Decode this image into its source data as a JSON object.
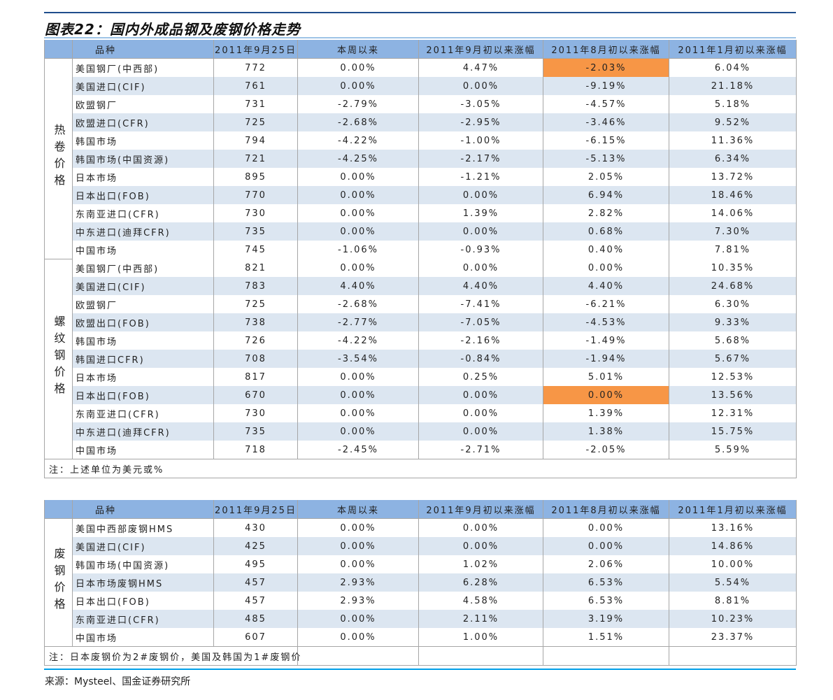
{
  "title": "图表22：国内外成品钢及废钢价格走势",
  "headers": [
    "品种",
    "2011年9月25日",
    "本周以来",
    "2011年9月初以来涨幅",
    "2011年8月初以来涨幅",
    "2011年1月初以来涨幅"
  ],
  "highlight_color": "#f79646",
  "table1": {
    "groups": [
      {
        "category": "热卷价格",
        "rows": [
          {
            "name": "美国钢厂(中西部)",
            "values": [
              "772",
              "0.00%",
              "4.47%",
              "-2.03%",
              "6.04%"
            ],
            "highlight": 3
          },
          {
            "name": "美国进口(CIF)",
            "values": [
              "761",
              "0.00%",
              "0.00%",
              "-9.19%",
              "21.18%"
            ]
          },
          {
            "name": "欧盟钢厂",
            "values": [
              "731",
              "-2.79%",
              "-3.05%",
              "-4.57%",
              "5.18%"
            ]
          },
          {
            "name": "欧盟进口(CFR)",
            "values": [
              "725",
              "-2.68%",
              "-2.95%",
              "-3.46%",
              "9.52%"
            ]
          },
          {
            "name": "韩国市场",
            "values": [
              "794",
              "-4.22%",
              "-1.00%",
              "-6.15%",
              "11.36%"
            ]
          },
          {
            "name": "韩国市场(中国资源)",
            "values": [
              "721",
              "-4.25%",
              "-2.17%",
              "-5.13%",
              "6.34%"
            ]
          },
          {
            "name": "日本市场",
            "values": [
              "895",
              "0.00%",
              "-1.21%",
              "2.05%",
              "13.72%"
            ]
          },
          {
            "name": "日本出口(FOB)",
            "values": [
              "770",
              "0.00%",
              "0.00%",
              "6.94%",
              "18.46%"
            ]
          },
          {
            "name": "东南亚进口(CFR)",
            "values": [
              "730",
              "0.00%",
              "1.39%",
              "2.82%",
              "14.06%"
            ]
          },
          {
            "name": "中东进口(迪拜CFR)",
            "values": [
              "735",
              "0.00%",
              "0.00%",
              "0.68%",
              "7.30%"
            ]
          },
          {
            "name": "中国市场",
            "values": [
              "745",
              "-1.06%",
              "-0.93%",
              "0.40%",
              "7.81%"
            ]
          }
        ]
      },
      {
        "category": "螺纹钢价格",
        "rows": [
          {
            "name": "美国钢厂(中西部)",
            "values": [
              "821",
              "0.00%",
              "0.00%",
              "0.00%",
              "10.35%"
            ]
          },
          {
            "name": "美国进口(CIF)",
            "values": [
              "783",
              "4.40%",
              "4.40%",
              "4.40%",
              "24.68%"
            ]
          },
          {
            "name": "欧盟钢厂",
            "values": [
              "725",
              "-2.68%",
              "-7.41%",
              "-6.21%",
              "6.30%"
            ]
          },
          {
            "name": "欧盟出口(FOB)",
            "values": [
              "738",
              "-2.77%",
              "-7.05%",
              "-4.53%",
              "9.33%"
            ]
          },
          {
            "name": "韩国市场",
            "values": [
              "726",
              "-4.22%",
              "-2.16%",
              "-1.49%",
              "5.68%"
            ]
          },
          {
            "name": "韩国进口CFR)",
            "values": [
              "708",
              "-3.54%",
              "-0.84%",
              "-1.94%",
              "5.67%"
            ]
          },
          {
            "name": "日本市场",
            "values": [
              "817",
              "0.00%",
              "0.25%",
              "5.01%",
              "12.53%"
            ]
          },
          {
            "name": "日本出口(FOB)",
            "values": [
              "670",
              "0.00%",
              "0.00%",
              "0.00%",
              "13.56%"
            ],
            "highlight": 3
          },
          {
            "name": "东南亚进口(CFR)",
            "values": [
              "730",
              "0.00%",
              "0.00%",
              "1.39%",
              "12.31%"
            ]
          },
          {
            "name": "中东进口(迪拜CFR)",
            "values": [
              "735",
              "0.00%",
              "0.00%",
              "1.38%",
              "15.75%"
            ]
          },
          {
            "name": "中国市场",
            "values": [
              "718",
              "-2.45%",
              "-2.71%",
              "-2.05%",
              "5.59%"
            ]
          }
        ]
      }
    ],
    "note": "注：上述单位为美元或%"
  },
  "table2": {
    "groups": [
      {
        "category": "废钢价格",
        "rows": [
          {
            "name": "美国中西部废钢HMS",
            "values": [
              "430",
              "0.00%",
              "0.00%",
              "0.00%",
              "13.16%"
            ]
          },
          {
            "name": "美国进口(CIF)",
            "values": [
              "425",
              "0.00%",
              "0.00%",
              "0.00%",
              "14.86%"
            ]
          },
          {
            "name": "韩国市场(中国资源)",
            "values": [
              "495",
              "0.00%",
              "1.02%",
              "2.06%",
              "10.00%"
            ]
          },
          {
            "name": "日本市场废钢HMS",
            "values": [
              "457",
              "2.93%",
              "6.28%",
              "6.53%",
              "5.54%"
            ]
          },
          {
            "name": "日本出口(FOB)",
            "values": [
              "457",
              "2.93%",
              "4.58%",
              "6.53%",
              "8.81%"
            ]
          },
          {
            "name": "东南亚进口(CFR)",
            "values": [
              "485",
              "0.00%",
              "2.11%",
              "3.19%",
              "10.23%"
            ]
          },
          {
            "name": "中国市场",
            "values": [
              "607",
              "0.00%",
              "1.00%",
              "1.51%",
              "23.37%"
            ]
          }
        ]
      }
    ],
    "note": "注：日本废钢价为2#废钢价，美国及韩国为1#废钢价"
  },
  "source": "来源：Mysteel、国金证券研究所"
}
